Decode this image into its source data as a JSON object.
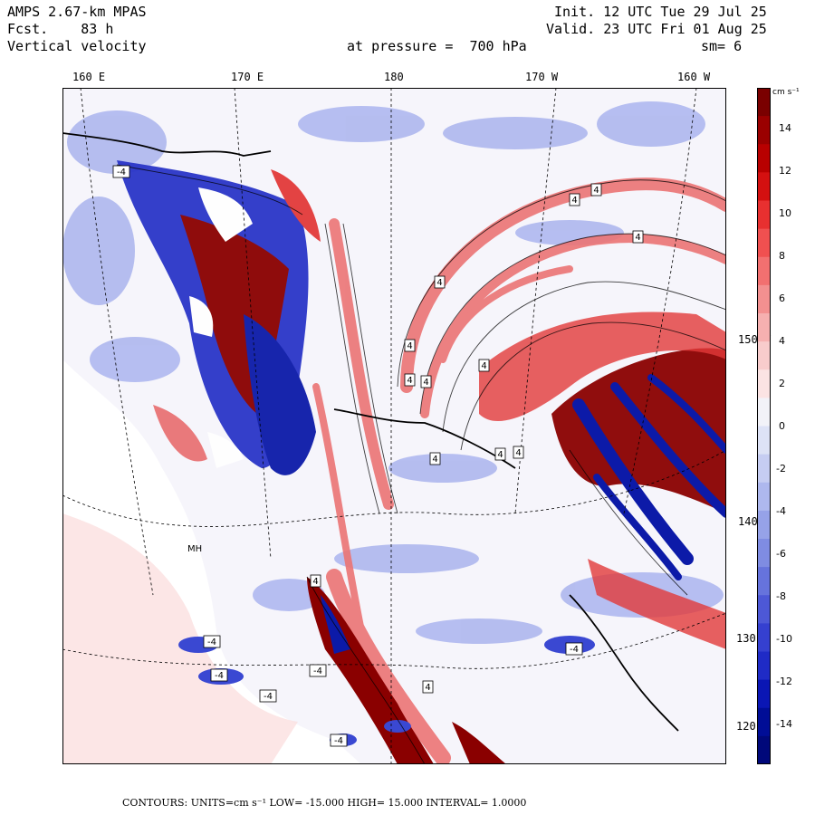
{
  "header": {
    "title_line1": "AMPS 2.67-km MPAS",
    "title_line2": "Fcst.    83 h",
    "title_line3": "Vertical velocity",
    "init_line": "Init. 12 UTC Tue 29 Jul 25",
    "valid_line": "Valid. 23 UTC Fri 01 Aug 25",
    "level_line": "at pressure =  700 hPa",
    "smooth_line": "sm= 6"
  },
  "longitude_labels": [
    "160 E",
    "170 E",
    "180",
    "170 W",
    "160 W"
  ],
  "latitude_labels": [
    "150 W",
    "140 W",
    "130 W",
    "120 W"
  ],
  "colorbar": {
    "units": "cm s⁻¹",
    "tick_labels": [
      "14",
      "12",
      "10",
      "8",
      "6",
      "4",
      "2",
      "0",
      "-2",
      "-4",
      "-6",
      "-8",
      "-10",
      "-12",
      "-14"
    ],
    "colors": [
      "#7a0000",
      "#9a0000",
      "#b80000",
      "#d41010",
      "#e83030",
      "#f05050",
      "#f27070",
      "#f39090",
      "#f6b0b0",
      "#f8cccc",
      "#fbe3e3",
      "#f2f2f8",
      "#dde2f6",
      "#c6cdf2",
      "#aeb8ee",
      "#96a2e8",
      "#7f8ce2",
      "#6673dc",
      "#4d58d6",
      "#3540d0",
      "#1f2bc6",
      "#0a16b4",
      "#000d96",
      "#00087a"
    ]
  },
  "map": {
    "contour_labels": [
      "4",
      "4",
      "4",
      "4",
      "4",
      "4",
      "4",
      "4",
      "4",
      "4",
      "4",
      "4",
      "4",
      "-4",
      "-4",
      "-4",
      "-4",
      "-4",
      "-4",
      "-4"
    ],
    "station_labels": [
      "MH"
    ],
    "colors": {
      "ocean": "#f6f5fb",
      "land_plain": "#ffffff",
      "updraft": "#e85050",
      "downdraft": "#3a48d2",
      "strong_up": "#8a0000",
      "strong_down": "#0c1aa8"
    }
  },
  "footer": {
    "contours": "CONTOURS:  UNITS=cm s⁻¹  LOW= -15.000       HIGH=  15.000      INTERVAL=   1.0000"
  }
}
